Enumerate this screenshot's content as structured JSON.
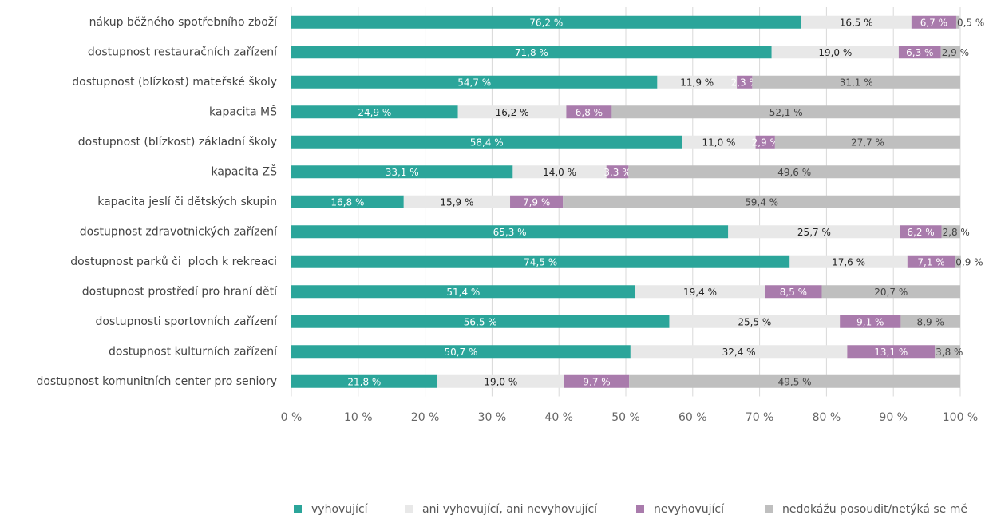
{
  "chart_data": {
    "type": "stacked-barh",
    "categories": [
      "nákup běžného spotřebního zboží",
      "dostupnost restauračních zařízení",
      "dostupnost (blízkost) mateřské školy",
      "kapacita MŠ",
      "dostupnost (blízkost) základní školy",
      "kapacita ZŠ",
      "kapacita jeslí či dětských skupin",
      "dostupnost zdravotnických zařízení",
      "dostupnost parků či  ploch k rekreaci",
      "dostupnost prostředí pro hraní dětí",
      "dostupnosti sportovních zařízení",
      "dostupnost kulturních zařízení",
      "dostupnost komunitních center pro seniory"
    ],
    "series": [
      {
        "name": "vyhovující",
        "color": "#2ba59a",
        "label_color": "#ffffff",
        "values": [
          76.2,
          71.8,
          54.7,
          24.9,
          58.4,
          33.1,
          16.8,
          65.3,
          74.5,
          51.4,
          56.5,
          50.7,
          21.8
        ],
        "value_labels": [
          "76,2 %",
          "71,8 %",
          "54,7 %",
          "24,9 %",
          "58,4 %",
          "33,1 %",
          "16,8 %",
          "65,3 %",
          "74,5 %",
          "51,4 %",
          "56,5 %",
          "50,7 %",
          "21,8 %"
        ]
      },
      {
        "name": "ani vyhovující, ani nevyhovující",
        "color": "#e8e8e8",
        "label_color": "#222222",
        "values": [
          16.5,
          19.0,
          11.9,
          16.2,
          11.0,
          14.0,
          15.9,
          25.7,
          17.6,
          19.4,
          25.5,
          32.4,
          19.0
        ],
        "value_labels": [
          "16,5 %",
          "19,0 %",
          "11,9 %",
          "16,2 %",
          "11,0 %",
          "14,0 %",
          "15,9 %",
          "25,7 %",
          "17,6 %",
          "19,4 %",
          "25,5 %",
          "32,4 %",
          "19,0 %"
        ]
      },
      {
        "name": "nevyhovující",
        "color": "#a97bac",
        "label_color": "#ffffff",
        "values": [
          6.7,
          6.3,
          2.3,
          6.8,
          2.9,
          3.3,
          7.9,
          6.2,
          7.1,
          8.5,
          9.1,
          13.1,
          9.7
        ],
        "value_labels": [
          "6,7 %",
          "6,3 %",
          "2,3 %",
          "6,8 %",
          "2,9 %",
          "3,3 %",
          "7,9 %",
          "6,2 %",
          "7,1 %",
          "8,5 %",
          "9,1 %",
          "13,1 %",
          "9,7 %"
        ]
      },
      {
        "name": "nedokážu posoudit/netýká se mě",
        "color": "#bfbfbf",
        "label_color": "#444444",
        "values": [
          0.5,
          2.9,
          31.1,
          52.1,
          27.7,
          49.6,
          59.4,
          2.8,
          0.9,
          20.7,
          8.9,
          3.8,
          49.5
        ],
        "value_labels": [
          "0,5 %",
          "2,9 %",
          "31,1 %",
          "52,1 %",
          "27,7 %",
          "49,6 %",
          "59,4 %",
          "2,8 %",
          "0,9 %",
          "20,7 %",
          "8,9 %",
          "3,8 %",
          "49,5 %"
        ]
      }
    ],
    "xlim": [
      0,
      100
    ],
    "xticks": [
      {
        "value": 0,
        "label": "0 %"
      },
      {
        "value": 10,
        "label": "10 %"
      },
      {
        "value": 20,
        "label": "20 %"
      },
      {
        "value": 30,
        "label": "30 %"
      },
      {
        "value": 40,
        "label": "40 %"
      },
      {
        "value": 50,
        "label": "50 %"
      },
      {
        "value": 60,
        "label": "60 %"
      },
      {
        "value": 70,
        "label": "70 %"
      },
      {
        "value": 80,
        "label": "80 %"
      },
      {
        "value": 90,
        "label": "90 %"
      },
      {
        "value": 100,
        "label": "100 %"
      }
    ],
    "grid": true,
    "legend": "bottom"
  }
}
